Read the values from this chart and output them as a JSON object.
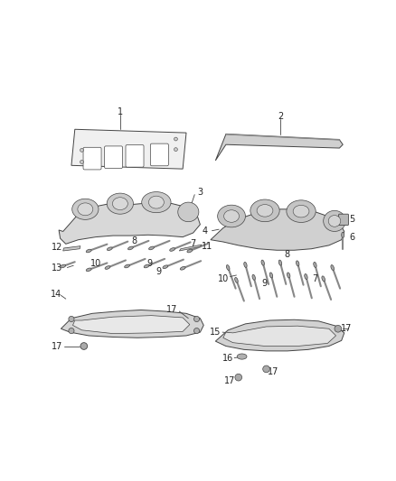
{
  "background_color": "#ffffff",
  "fig_width": 4.38,
  "fig_height": 5.33,
  "dpi": 100,
  "line_color": "#444444",
  "label_color": "#222222",
  "label_fontsize": 7.0,
  "part_facecolor": "#e0e0e0",
  "part_edgecolor": "#444444"
}
